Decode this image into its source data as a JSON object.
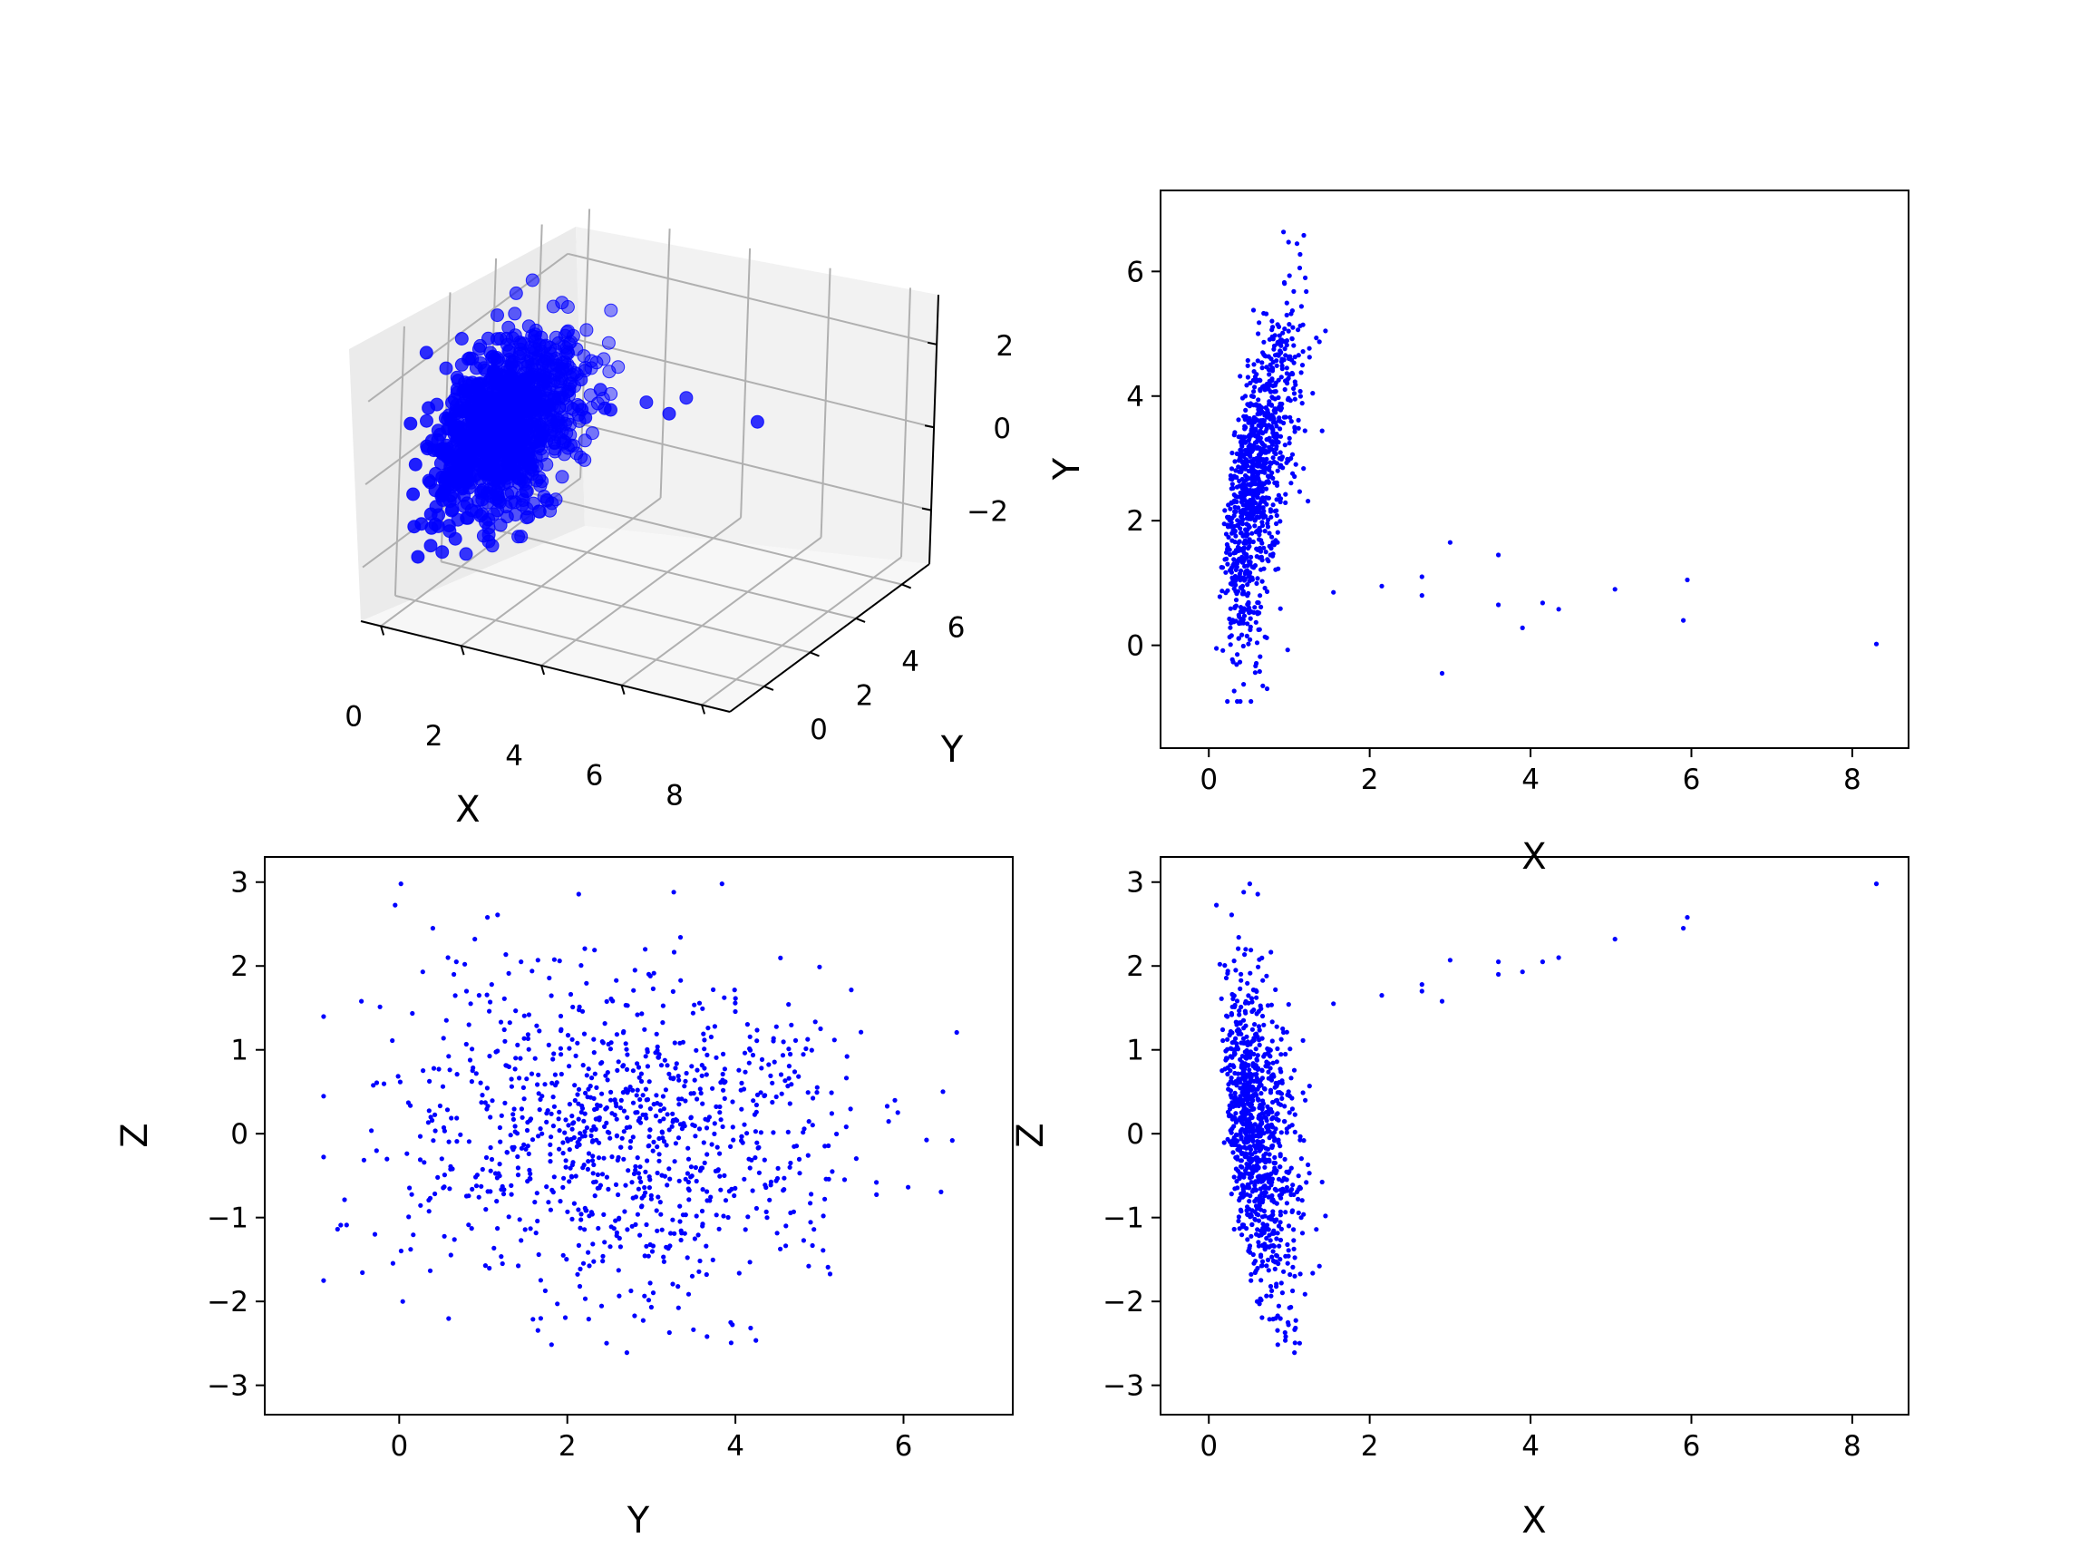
{
  "chart_data": [
    {
      "type": "scatter",
      "projection": "3d",
      "title": "",
      "xlabel": "X",
      "ylabel": "Y",
      "zlabel": "",
      "xticks": [
        0,
        2,
        4,
        6,
        8
      ],
      "yticks": [
        0,
        2,
        4,
        6
      ],
      "zticks": [
        2,
        0,
        -2
      ],
      "xlim": [
        -0.5,
        8.7
      ],
      "ylim": [
        -1.5,
        7.2
      ],
      "zlim": [
        -3.3,
        3.2
      ],
      "color": "#0000ff",
      "description_of_data": "about 1000 points (X near 0-1.2, Y 0-6, Z -3 to 3) plus ~15 outliers at larger X",
      "outliers": [
        {
          "x": 1.55,
          "y": 0.85,
          "z": 1.55
        },
        {
          "x": 2.15,
          "y": 0.95,
          "z": 1.65
        },
        {
          "x": 2.65,
          "y": 0.8,
          "z": 1.7
        },
        {
          "x": 2.65,
          "y": 1.1,
          "z": 1.78
        },
        {
          "x": 2.9,
          "y": -0.45,
          "z": 1.58
        },
        {
          "x": 3.0,
          "y": 1.65,
          "z": 2.07
        },
        {
          "x": 3.6,
          "y": 0.65,
          "z": 1.9
        },
        {
          "x": 3.6,
          "y": 1.45,
          "z": 2.05
        },
        {
          "x": 3.9,
          "y": 0.28,
          "z": 1.93
        },
        {
          "x": 4.15,
          "y": 0.68,
          "z": 2.05
        },
        {
          "x": 4.35,
          "y": 0.58,
          "z": 2.1
        },
        {
          "x": 5.05,
          "y": 0.9,
          "z": 2.32
        },
        {
          "x": 5.9,
          "y": 0.4,
          "z": 2.45
        },
        {
          "x": 5.95,
          "y": 1.05,
          "z": 2.58
        },
        {
          "x": 8.3,
          "y": 0.02,
          "z": 2.98
        }
      ]
    },
    {
      "type": "scatter",
      "title": "",
      "xlabel": "X",
      "ylabel": "Y",
      "xticks": [
        0,
        2,
        4,
        6,
        8
      ],
      "yticks": [
        0,
        2,
        4,
        6
      ],
      "xlim": [
        -0.6,
        8.7
      ],
      "ylim": [
        -1.65,
        7.3
      ],
      "color": "#0000ff",
      "series": [
        {
          "x_col": "X",
          "y_col": "Y"
        }
      ]
    },
    {
      "type": "scatter",
      "title": "",
      "xlabel": "Y",
      "ylabel": "Z",
      "xticks": [
        0,
        2,
        4,
        6
      ],
      "yticks": [
        3,
        2,
        1,
        0,
        -1,
        -2,
        -3
      ],
      "xlim": [
        -1.6,
        7.3
      ],
      "ylim": [
        -3.35,
        3.3
      ],
      "color": "#0000ff",
      "series": [
        {
          "x_col": "Y",
          "y_col": "Z"
        }
      ]
    },
    {
      "type": "scatter",
      "title": "",
      "xlabel": "X",
      "ylabel": "Z",
      "xticks": [
        0,
        2,
        4,
        6,
        8
      ],
      "yticks": [
        3,
        2,
        1,
        0,
        -1,
        -2,
        -3
      ],
      "xlim": [
        -0.6,
        8.7
      ],
      "ylim": [
        -3.35,
        3.3
      ],
      "color": "#0000ff",
      "series": [
        {
          "x_col": "X",
          "y_col": "Z"
        }
      ]
    }
  ]
}
